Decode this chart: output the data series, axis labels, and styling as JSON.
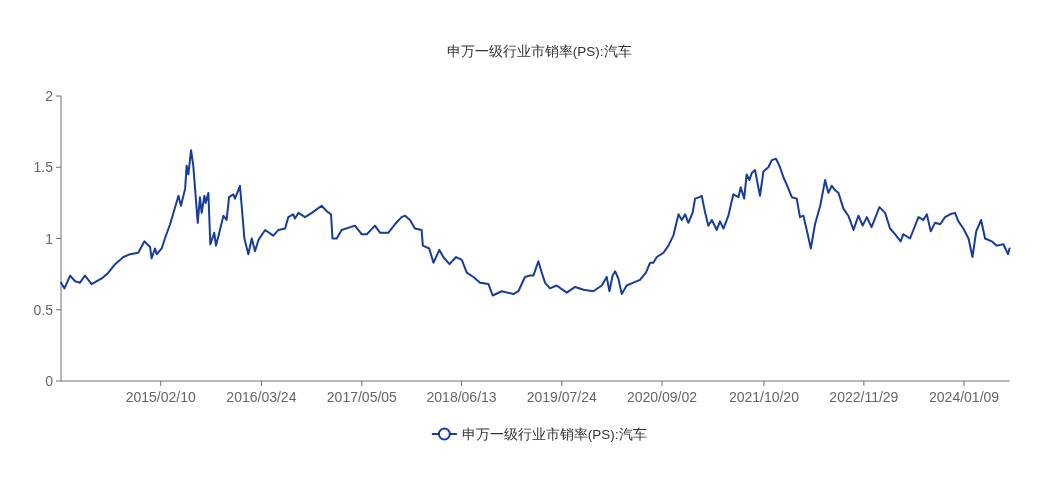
{
  "chart_data": {
    "type": "line",
    "title": "申万一级行业市销率(PS):汽车",
    "x": [
      "2014-01-02",
      "2014-01-16",
      "2014-02-08",
      "2014-02-28",
      "2014-03-20",
      "2014-04-09",
      "2014-05-06",
      "2014-06-16",
      "2014-07-13",
      "2014-08-09",
      "2014-09-12",
      "2014-10-09",
      "2014-11-11",
      "2014-12-06",
      "2014-12-29",
      "2015-01-04",
      "2015-01-18",
      "2015-01-25",
      "2015-02-14",
      "2015-02-27",
      "2015-03-20",
      "2015-04-23",
      "2015-05-03",
      "2015-05-20",
      "2015-05-26",
      "2015-06-02",
      "2015-06-13",
      "2015-06-22",
      "2015-07-10",
      "2015-07-19",
      "2015-07-26",
      "2015-08-06",
      "2015-08-11",
      "2015-08-22",
      "2015-08-30",
      "2015-09-15",
      "2015-09-22",
      "2015-10-08",
      "2015-10-22",
      "2015-11-04",
      "2015-11-14",
      "2015-12-01",
      "2015-12-08",
      "2015-12-28",
      "2016-01-04",
      "2016-01-15",
      "2016-01-31",
      "2016-02-14",
      "2016-02-27",
      "2016-03-12",
      "2016-04-08",
      "2016-05-11",
      "2016-06-01",
      "2016-06-28",
      "2016-07-11",
      "2016-07-31",
      "2016-08-07",
      "2016-08-21",
      "2016-09-17",
      "2016-10-14",
      "2016-11-23",
      "2016-12-14",
      "2016-12-31",
      "2017-01-06",
      "2017-01-23",
      "2017-02-12",
      "2017-04-07",
      "2017-05-04",
      "2017-05-25",
      "2017-06-27",
      "2017-07-18",
      "2017-08-20",
      "2017-09-16",
      "2017-10-13",
      "2017-10-27",
      "2017-11-16",
      "2017-12-06",
      "2018-01-02",
      "2018-01-07",
      "2018-02-02",
      "2018-02-19",
      "2018-03-15",
      "2018-03-31",
      "2018-04-25",
      "2018-05-22",
      "2018-06-14",
      "2018-07-04",
      "2018-07-31",
      "2018-08-27",
      "2018-09-30",
      "2018-10-17",
      "2018-11-23",
      "2019-01-09",
      "2019-01-29",
      "2019-02-25",
      "2019-03-17",
      "2019-03-31",
      "2019-04-20",
      "2019-05-04",
      "2019-05-17",
      "2019-06-06",
      "2019-07-03",
      "2019-08-13",
      "2019-09-16",
      "2019-10-20",
      "2019-11-29",
      "2020-01-02",
      "2020-01-22",
      "2020-02-02",
      "2020-02-15",
      "2020-02-25",
      "2020-03-09",
      "2020-03-23",
      "2020-04-12",
      "2020-05-09",
      "2020-06-05",
      "2020-06-29",
      "2020-07-16",
      "2020-07-29",
      "2020-08-12",
      "2020-09-08",
      "2020-09-28",
      "2020-10-18",
      "2020-11-08",
      "2020-11-21",
      "2020-12-05",
      "2020-12-18",
      "2021-01-04",
      "2021-01-14",
      "2021-02-01",
      "2021-02-10",
      "2021-02-24",
      "2021-03-09",
      "2021-03-23",
      "2021-04-12",
      "2021-04-25",
      "2021-05-09",
      "2021-05-29",
      "2021-06-18",
      "2021-07-09",
      "2021-07-18",
      "2021-08-01",
      "2021-08-11",
      "2021-08-22",
      "2021-09-01",
      "2021-09-14",
      "2021-10-04",
      "2021-10-18",
      "2021-11-07",
      "2021-11-21",
      "2021-12-08",
      "2021-12-22",
      "2022-01-07",
      "2022-01-20",
      "2022-02-10",
      "2022-03-02",
      "2022-03-15",
      "2022-03-29",
      "2022-04-14",
      "2022-04-28",
      "2022-05-15",
      "2022-06-05",
      "2022-06-25",
      "2022-07-08",
      "2022-07-22",
      "2022-08-04",
      "2022-08-18",
      "2022-09-07",
      "2022-09-27",
      "2022-10-18",
      "2022-11-07",
      "2022-11-24",
      "2022-12-11",
      "2022-12-30",
      "2023-01-31",
      "2023-02-23",
      "2023-03-15",
      "2023-04-04",
      "2023-04-27",
      "2023-05-08",
      "2023-06-04",
      "2023-07-08",
      "2023-07-28",
      "2023-08-11",
      "2023-08-27",
      "2023-09-13",
      "2023-10-04",
      "2023-10-24",
      "2023-11-13",
      "2023-12-03",
      "2023-12-17",
      "2024-01-06",
      "2024-01-27",
      "2024-02-12",
      "2024-02-27",
      "2024-03-18",
      "2024-04-03",
      "2024-04-30",
      "2024-05-20",
      "2024-06-16",
      "2024-07-05",
      "2024-07-11"
    ],
    "series": [
      {
        "name": "申万一级行业市销率(PS):汽车",
        "color": "#163d9a",
        "values": [
          0.69,
          0.65,
          0.74,
          0.7,
          0.69,
          0.74,
          0.68,
          0.72,
          0.76,
          0.82,
          0.87,
          0.89,
          0.9,
          0.98,
          0.94,
          0.86,
          0.93,
          0.89,
          0.93,
          1.0,
          1.1,
          1.3,
          1.23,
          1.35,
          1.51,
          1.45,
          1.62,
          1.51,
          1.11,
          1.29,
          1.18,
          1.3,
          1.25,
          1.32,
          0.96,
          1.04,
          0.95,
          1.06,
          1.16,
          1.13,
          1.29,
          1.31,
          1.28,
          1.37,
          1.23,
          1.0,
          0.89,
          1.0,
          0.91,
          0.99,
          1.06,
          1.02,
          1.06,
          1.07,
          1.15,
          1.17,
          1.14,
          1.18,
          1.15,
          1.18,
          1.23,
          1.19,
          1.17,
          1.0,
          1.0,
          1.06,
          1.09,
          1.03,
          1.03,
          1.09,
          1.04,
          1.04,
          1.1,
          1.15,
          1.16,
          1.13,
          1.07,
          1.06,
          0.95,
          0.93,
          0.83,
          0.92,
          0.87,
          0.82,
          0.87,
          0.85,
          0.76,
          0.73,
          0.69,
          0.68,
          0.6,
          0.63,
          0.61,
          0.63,
          0.73,
          0.74,
          0.74,
          0.84,
          0.76,
          0.69,
          0.65,
          0.67,
          0.62,
          0.66,
          0.64,
          0.63,
          0.67,
          0.73,
          0.63,
          0.74,
          0.77,
          0.72,
          0.61,
          0.67,
          0.69,
          0.71,
          0.76,
          0.83,
          0.83,
          0.87,
          0.9,
          0.95,
          1.02,
          1.17,
          1.13,
          1.17,
          1.11,
          1.18,
          1.28,
          1.29,
          1.3,
          1.18,
          1.09,
          1.13,
          1.06,
          1.12,
          1.07,
          1.16,
          1.31,
          1.29,
          1.36,
          1.28,
          1.45,
          1.41,
          1.46,
          1.48,
          1.3,
          1.47,
          1.5,
          1.55,
          1.56,
          1.51,
          1.43,
          1.38,
          1.29,
          1.28,
          1.15,
          1.16,
          1.04,
          0.93,
          1.1,
          1.23,
          1.41,
          1.32,
          1.37,
          1.34,
          1.32,
          1.21,
          1.16,
          1.06,
          1.16,
          1.09,
          1.15,
          1.08,
          1.22,
          1.18,
          1.07,
          1.03,
          0.98,
          1.03,
          1.0,
          1.15,
          1.13,
          1.17,
          1.05,
          1.11,
          1.1,
          1.15,
          1.17,
          1.18,
          1.12,
          1.07,
          1.0,
          0.87,
          1.05,
          1.13,
          1.0,
          0.98,
          0.95,
          0.96,
          0.89,
          0.93
        ]
      }
    ],
    "xlim": [
      "2014-01-02",
      "2024-07-11"
    ],
    "xticks": [
      {
        "value": "2015-02-10",
        "label": "2015/02/10"
      },
      {
        "value": "2016-03-24",
        "label": "2016/03/24"
      },
      {
        "value": "2017-05-05",
        "label": "2017/05/05"
      },
      {
        "value": "2018-06-13",
        "label": "2018/06/13"
      },
      {
        "value": "2019-07-24",
        "label": "2019/07/24"
      },
      {
        "value": "2020-09-02",
        "label": "2020/09/02"
      },
      {
        "value": "2021-10-20",
        "label": "2021/10/20"
      },
      {
        "value": "2022-11-29",
        "label": "2022/11/29"
      },
      {
        "value": "2024-01-09",
        "label": "2024/01/09"
      }
    ],
    "ylim": [
      0,
      2
    ],
    "yticks": [
      0,
      0.5,
      1,
      1.5,
      2
    ],
    "legend": "bottom"
  }
}
